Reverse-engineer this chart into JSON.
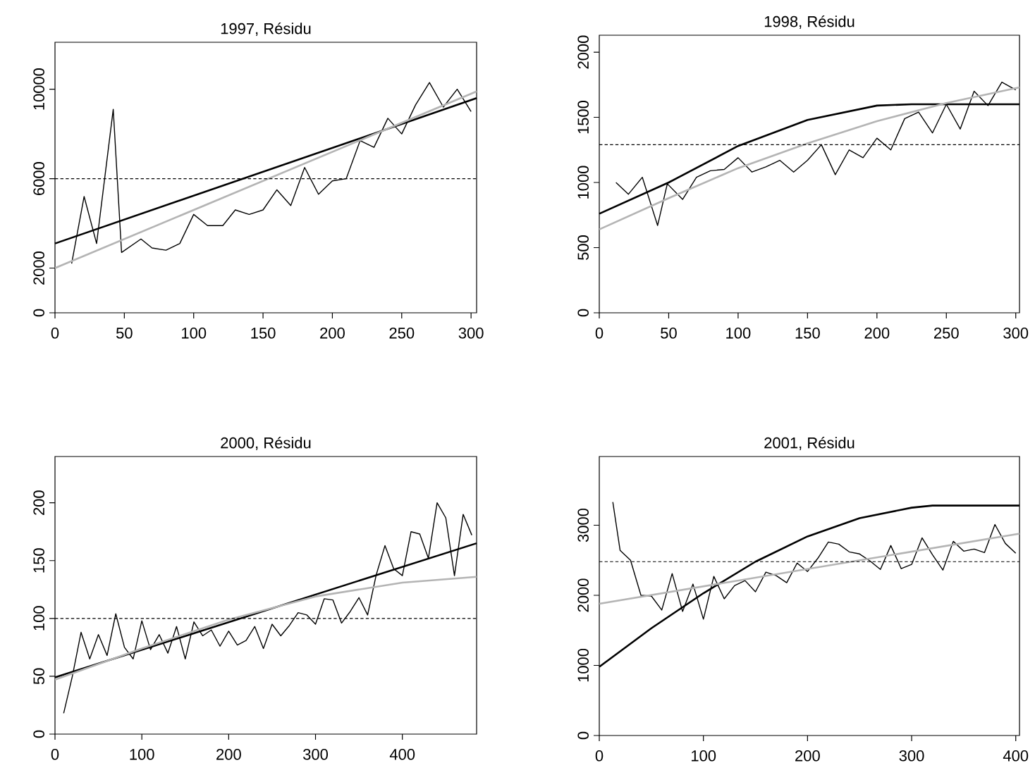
{
  "chart_data": [
    {
      "type": "line",
      "title": "1997, Résidu",
      "xlim": [
        0,
        304
      ],
      "xticks": [
        0,
        50,
        100,
        150,
        200,
        250,
        300
      ],
      "ylim": [
        0,
        12100
      ],
      "yticks": [
        0,
        2000,
        6000,
        10000
      ],
      "series": [
        {
          "color": "#000000",
          "x": [
            12,
            21,
            30,
            42,
            48,
            62,
            70,
            80,
            90,
            100,
            110,
            121,
            130,
            140,
            150,
            160,
            170,
            180,
            190,
            200,
            210,
            220,
            230,
            240,
            250,
            260,
            270,
            280,
            290,
            300
          ],
          "values": [
            2200,
            5200,
            3100,
            9100,
            2700,
            3300,
            2900,
            2800,
            3100,
            4400,
            3900,
            3900,
            4600,
            4400,
            4600,
            5500,
            4800,
            6500,
            5300,
            5900,
            6000,
            7700,
            7400,
            8700,
            8000,
            9300,
            10300,
            9200,
            10000,
            9000
          ]
        },
        {
          "color": "#000000",
          "x": [
            0,
            304
          ],
          "values": [
            3100,
            9600
          ]
        },
        {
          "color": "#b4b4b4",
          "x": [
            0,
            304
          ],
          "values": [
            2000,
            9900
          ]
        }
      ],
      "ref_lines": [
        {
          "axis": "y",
          "value": 6000,
          "color": "#000000",
          "line_style": "dashed"
        }
      ]
    },
    {
      "type": "line",
      "title": "1998, Résidu",
      "xlim": [
        0,
        302.7
      ],
      "xticks": [
        0,
        50,
        100,
        150,
        200,
        250,
        300
      ],
      "ylim": [
        0,
        2130
      ],
      "yticks": [
        0,
        500,
        1000,
        1500,
        2000
      ],
      "series": [
        {
          "color": "#000000",
          "x": [
            12,
            21,
            31,
            42,
            49,
            60,
            70,
            80,
            90,
            100,
            110,
            120,
            130,
            140,
            150,
            160,
            170,
            180,
            190,
            200,
            210,
            220,
            230,
            240,
            250,
            260,
            270,
            280,
            290,
            300
          ],
          "values": [
            1000,
            910,
            1040,
            670,
            990,
            870,
            1040,
            1090,
            1100,
            1190,
            1080,
            1120,
            1170,
            1080,
            1170,
            1290,
            1060,
            1250,
            1190,
            1340,
            1250,
            1490,
            1540,
            1380,
            1600,
            1410,
            1700,
            1590,
            1770,
            1710
          ]
        },
        {
          "color": "#000000",
          "x": [
            0,
            50,
            100,
            150,
            200,
            225,
            302.7
          ],
          "values": [
            760,
            1000,
            1280,
            1480,
            1590,
            1600,
            1600
          ]
        },
        {
          "color": "#b4b4b4",
          "x": [
            0,
            50,
            100,
            150,
            200,
            250,
            302.7
          ],
          "values": [
            640,
            880,
            1110,
            1300,
            1470,
            1610,
            1730
          ]
        }
      ],
      "ref_lines": [
        {
          "axis": "y",
          "value": 1290,
          "color": "#000000",
          "line_style": "dashed"
        }
      ]
    },
    {
      "type": "line",
      "title": "2000, Résidu",
      "xlim": [
        0,
        485.5
      ],
      "xticks": [
        0,
        100,
        200,
        300,
        400
      ],
      "ylim": [
        0,
        240
      ],
      "yticks": [
        0,
        50,
        100,
        150,
        200
      ],
      "series": [
        {
          "color": "#000000",
          "x": [
            10,
            20,
            30,
            40,
            50,
            60,
            70,
            80,
            90,
            100,
            110,
            120,
            130,
            140,
            150,
            160,
            170,
            180,
            190,
            200,
            210,
            220,
            230,
            240,
            250,
            260,
            270,
            280,
            290,
            300,
            310,
            320,
            330,
            340,
            350,
            360,
            370,
            380,
            390,
            400,
            410,
            420,
            430,
            440,
            450,
            460,
            470,
            480
          ],
          "values": [
            18,
            50,
            88,
            65,
            86,
            68,
            104,
            75,
            65,
            98,
            73,
            86,
            70,
            93,
            65,
            97,
            85,
            90,
            76,
            89,
            77,
            81,
            93,
            74,
            95,
            85,
            94,
            105,
            103,
            95,
            117,
            116,
            96,
            106,
            118,
            103,
            138,
            163,
            143,
            137,
            175,
            173,
            152,
            200,
            187,
            137,
            190,
            172
          ]
        },
        {
          "color": "#000000",
          "x": [
            0,
            485.5
          ],
          "values": [
            49,
            165
          ]
        },
        {
          "color": "#b4b4b4",
          "x": [
            0,
            100,
            200,
            300,
            400,
            485.5
          ],
          "values": [
            47,
            74,
            99,
            119,
            131,
            136
          ]
        }
      ],
      "ref_lines": [
        {
          "axis": "y",
          "value": 100,
          "color": "#000000",
          "line_style": "dashed"
        }
      ]
    },
    {
      "type": "line",
      "title": "2001, Résidu",
      "xlim": [
        0,
        403.6
      ],
      "xticks": [
        0,
        100,
        200,
        300,
        400
      ],
      "ylim": [
        0,
        3980
      ],
      "yticks": [
        0,
        1000,
        2000,
        3000
      ],
      "series": [
        {
          "color": "#000000",
          "x": [
            13,
            20,
            30,
            40,
            50,
            60,
            70,
            80,
            90,
            100,
            110,
            120,
            130,
            140,
            150,
            160,
            170,
            180,
            190,
            200,
            210,
            220,
            230,
            240,
            250,
            260,
            270,
            280,
            290,
            300,
            310,
            320,
            330,
            340,
            350,
            360,
            370,
            380,
            390,
            400
          ],
          "values": [
            3330,
            2640,
            2500,
            2000,
            1990,
            1790,
            2310,
            1770,
            2160,
            1660,
            2270,
            1950,
            2140,
            2210,
            2050,
            2330,
            2280,
            2180,
            2460,
            2340,
            2530,
            2760,
            2730,
            2620,
            2590,
            2490,
            2370,
            2710,
            2380,
            2440,
            2820,
            2580,
            2360,
            2770,
            2630,
            2660,
            2610,
            3010,
            2740,
            2600
          ]
        },
        {
          "color": "#000000",
          "x": [
            0,
            50,
            100,
            150,
            200,
            250,
            300,
            320,
            403.6
          ],
          "values": [
            980,
            1530,
            2030,
            2480,
            2840,
            3100,
            3250,
            3280,
            3280
          ]
        },
        {
          "color": "#b4b4b4",
          "x": [
            0,
            403.6
          ],
          "values": [
            1880,
            2880
          ]
        }
      ],
      "ref_lines": [
        {
          "axis": "y",
          "value": 2480,
          "color": "#000000",
          "line_style": "dashed"
        }
      ]
    }
  ]
}
